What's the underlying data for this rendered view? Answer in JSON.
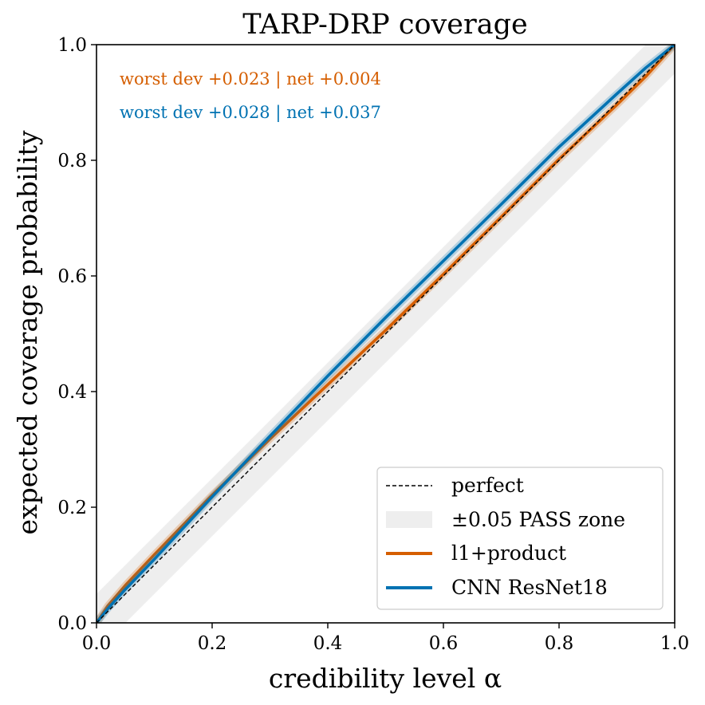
{
  "chart_data": {
    "type": "line",
    "title": "TARP-DRP coverage",
    "xlabel": "credibility level α",
    "ylabel": "expected coverage probability",
    "xlim": [
      0.0,
      1.0
    ],
    "ylim": [
      0.0,
      1.0
    ],
    "xticks": [
      "0.0",
      "0.2",
      "0.4",
      "0.6",
      "0.8",
      "1.0"
    ],
    "yticks": [
      "0.0",
      "0.2",
      "0.4",
      "0.6",
      "0.8",
      "1.0"
    ],
    "grid": false,
    "legend_position": "lower-right",
    "annotations": [
      {
        "text": "worst dev +0.023 | net +0.004",
        "color": "#d55e00"
      },
      {
        "text": "worst dev +0.028 | net +0.037",
        "color": "#0072b2"
      }
    ],
    "pass_zone_halfwidth": 0.05,
    "series": [
      {
        "name": "perfect",
        "color": "#000000",
        "style": "dashed",
        "x": [
          0.0,
          1.0
        ],
        "y": [
          0.0,
          1.0
        ]
      },
      {
        "name": "±0.05 PASS zone",
        "color": "#eeeeee",
        "style": "band"
      },
      {
        "name": "l1+product",
        "color": "#d55e00",
        "style": "solid",
        "x": [
          0.0,
          0.02,
          0.05,
          0.1,
          0.2,
          0.3,
          0.4,
          0.5,
          0.6,
          0.7,
          0.8,
          0.9,
          0.95,
          1.0
        ],
        "y": [
          0.0,
          0.03,
          0.065,
          0.118,
          0.221,
          0.318,
          0.412,
          0.506,
          0.603,
          0.702,
          0.802,
          0.896,
          0.945,
          1.0
        ]
      },
      {
        "name": "CNN ResNet18",
        "color": "#0072b2",
        "style": "solid",
        "x": [
          0.0,
          0.02,
          0.05,
          0.1,
          0.2,
          0.3,
          0.4,
          0.5,
          0.6,
          0.7,
          0.8,
          0.9,
          0.95,
          1.0
        ],
        "y": [
          0.0,
          0.025,
          0.058,
          0.11,
          0.218,
          0.323,
          0.427,
          0.528,
          0.626,
          0.724,
          0.823,
          0.915,
          0.96,
          1.0
        ]
      }
    ]
  }
}
